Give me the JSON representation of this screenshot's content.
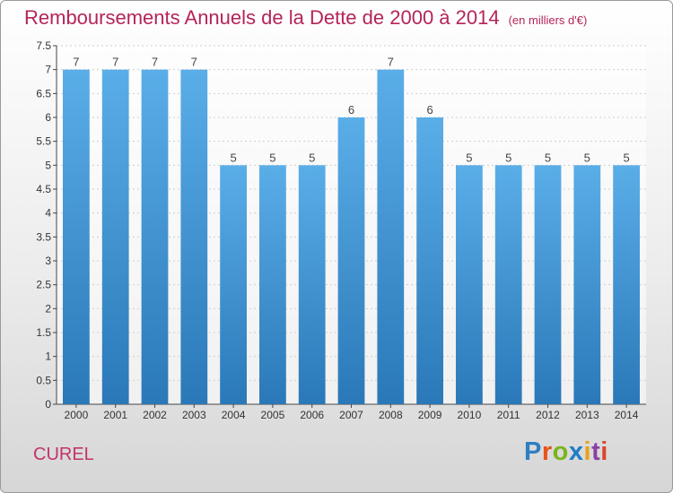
{
  "title": "Remboursements Annuels de la Dette de 2000 à 2014",
  "subtitle": "(en milliers d'€)",
  "place": "CUREL",
  "logo": "Proxiti",
  "colors": {
    "title": "#b5245a",
    "bar_top": "#5aaee8",
    "bar_bottom": "#2a78b8",
    "axis": "#444444",
    "grid": "#cfcfcf"
  },
  "chart_data": {
    "type": "bar",
    "title": "Remboursements Annuels de la Dette de 2000 à 2014",
    "subtitle": "(en milliers d'€)",
    "xlabel": "",
    "ylabel": "",
    "categories": [
      "2000",
      "2001",
      "2002",
      "2003",
      "2004",
      "2005",
      "2006",
      "2007",
      "2008",
      "2009",
      "2010",
      "2011",
      "2012",
      "2013",
      "2014"
    ],
    "values": [
      7,
      7,
      7,
      7,
      5,
      5,
      5,
      6,
      7,
      6,
      5,
      5,
      5,
      5,
      5
    ],
    "data_labels": [
      "7",
      "7",
      "7",
      "7",
      "5",
      "5",
      "5",
      "6",
      "7",
      "6",
      "5",
      "5",
      "5",
      "5",
      "5"
    ],
    "ylim": [
      0,
      7.5
    ],
    "yticks": [
      "0",
      "0.5",
      "1",
      "1.5",
      "2",
      "2.5",
      "3",
      "3.5",
      "4",
      "4.5",
      "5",
      "5.5",
      "6",
      "6.5",
      "7",
      "7.5"
    ],
    "grid": true,
    "legend": "none"
  }
}
